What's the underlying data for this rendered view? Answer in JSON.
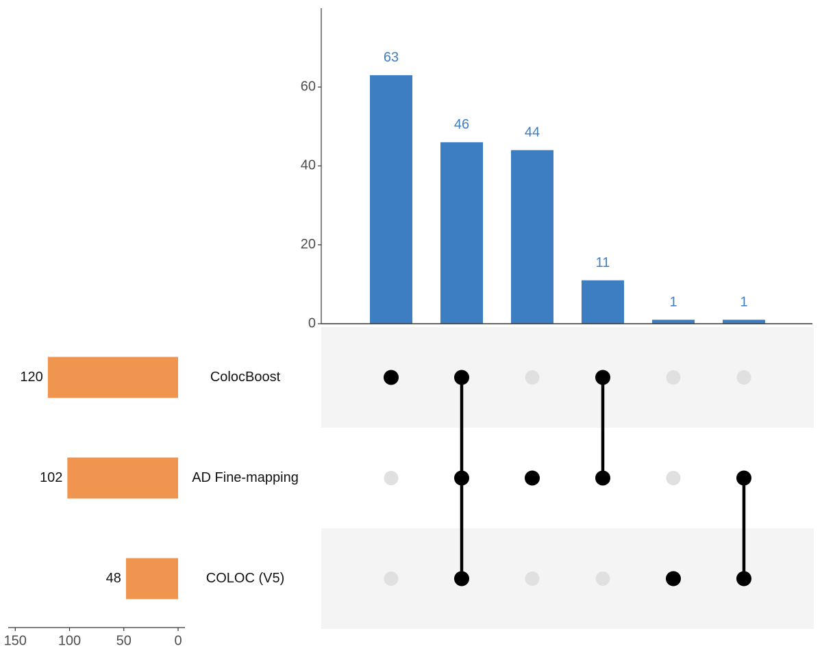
{
  "chart_data": {
    "type": "bar",
    "subtype": "upset",
    "title": "",
    "colors": {
      "intersection_bar": "#3d7ec2",
      "set_bar": "#f0954f",
      "dot_active": "#000000",
      "dot_inactive": "#e0e0e0",
      "stripe": "#f4f4f4",
      "axis": "#333333",
      "tick_text": "#4d4d4d"
    },
    "sets": [
      {
        "name": "ColocBoost",
        "size": 120,
        "size_label": "120"
      },
      {
        "name": "AD Fine-mapping",
        "size": 102,
        "size_label": "102"
      },
      {
        "name": "COLOC (V5)",
        "size": 48,
        "size_label": "48"
      }
    ],
    "intersections": [
      {
        "members": [
          0
        ],
        "value": 63,
        "label": "63"
      },
      {
        "members": [
          0,
          1,
          2
        ],
        "value": 46,
        "label": "46"
      },
      {
        "members": [
          1
        ],
        "value": 44,
        "label": "44"
      },
      {
        "members": [
          0,
          1
        ],
        "value": 11,
        "label": "11"
      },
      {
        "members": [
          2
        ],
        "value": 1,
        "label": "1"
      },
      {
        "members": [
          1,
          2
        ],
        "value": 1,
        "label": "1"
      }
    ],
    "intersection_axis": {
      "ylim": [
        0,
        72
      ],
      "ticks": [
        0,
        20,
        40,
        60
      ],
      "tick_labels": [
        "0",
        "20",
        "40",
        "60"
      ]
    },
    "set_size_axis": {
      "xlim": [
        0,
        150
      ],
      "reversed": true,
      "ticks": [
        150,
        100,
        50,
        0
      ],
      "tick_labels": [
        "150",
        "100",
        "50",
        "0"
      ]
    }
  }
}
